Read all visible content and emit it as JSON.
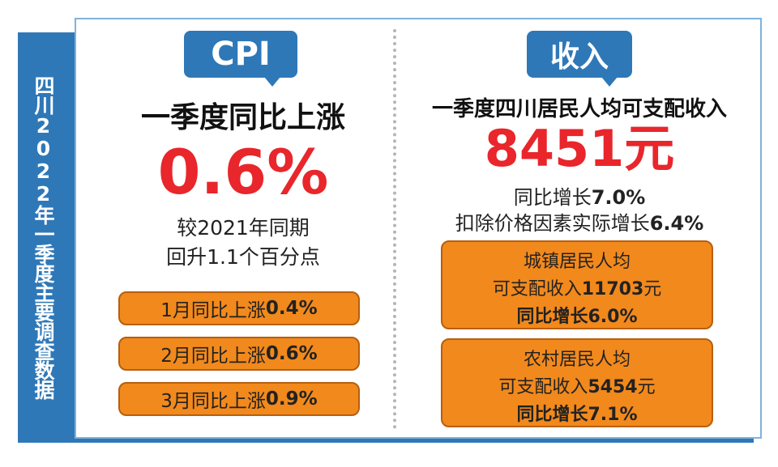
{
  "sidebar": {
    "title": "四川2022年一季度主要调查数据"
  },
  "colors": {
    "brand_blue": "#2f78b8",
    "highlight_red": "#e8262b",
    "orange": "#f2891c"
  },
  "cpi": {
    "tag": "CPI",
    "headline": "一季度同比上涨",
    "value": "0.6%",
    "compare_line1": "较2021年同期",
    "compare_line2": "回升1.1个百分点",
    "months": [
      {
        "label": "1月同比上涨",
        "value": "0.4%"
      },
      {
        "label": "2月同比上涨",
        "value": "0.6%"
      },
      {
        "label": "3月同比上涨",
        "value": "0.9%"
      }
    ]
  },
  "income": {
    "tag": "收入",
    "headline": "一季度四川居民人均可支配收入",
    "value": "8451元",
    "growth_label": "同比增长",
    "growth_value": "7.0%",
    "real_label": "扣除价格因素实际增长",
    "real_value": "6.4%",
    "urban": {
      "title": "城镇居民人均",
      "amount_label": "可支配收入",
      "amount_value": "11703",
      "amount_unit": "元",
      "growth": "同比增长6.0%"
    },
    "rural": {
      "title": "农村居民人均",
      "amount_label": "可支配收入",
      "amount_value": "5454",
      "amount_unit": "元",
      "growth": "同比增长7.1%"
    }
  }
}
